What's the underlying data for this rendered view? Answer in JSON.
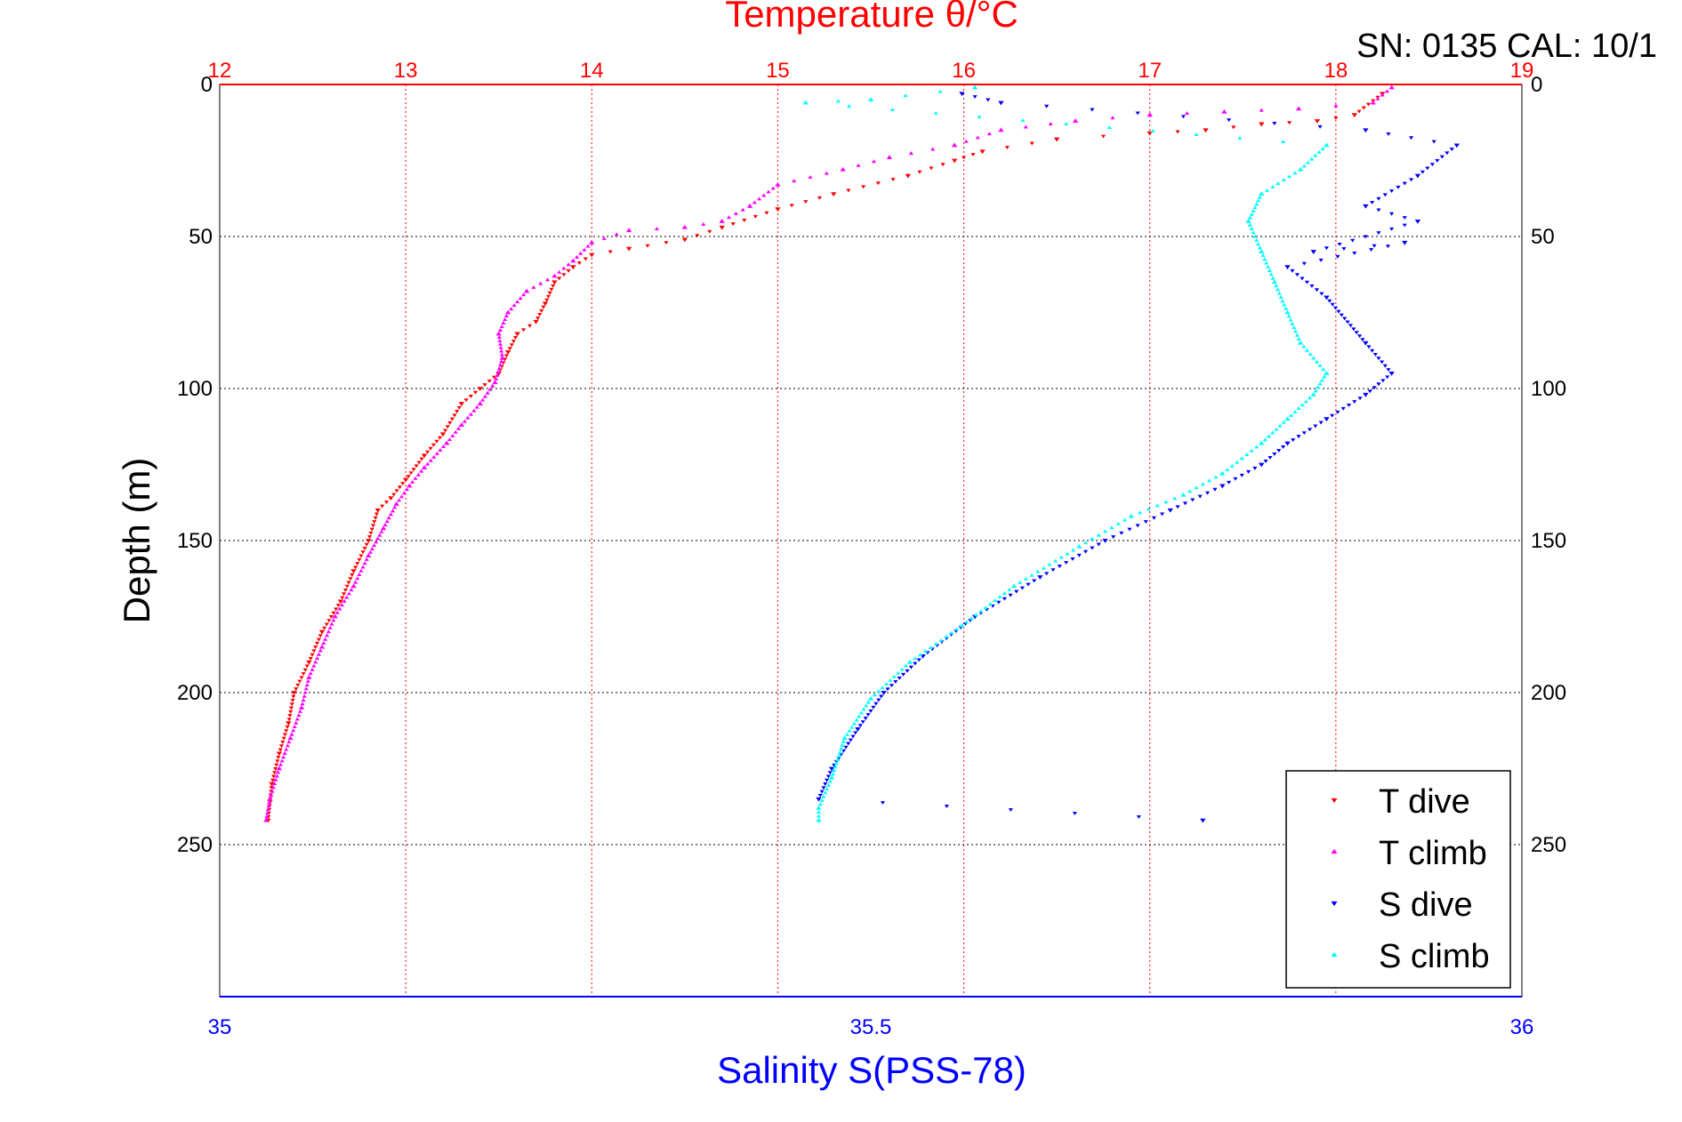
{
  "header": {
    "serial_text": "SN: 0135  CAL: 10/1"
  },
  "chart_data": {
    "type": "scatter",
    "title": "Temperature θ/°C",
    "xlabel": "Salinity S(PSS-78)",
    "ylabel": "Depth (m)",
    "top_axis": {
      "label": "Temperature θ/°C",
      "range": [
        12,
        19
      ],
      "ticks": [
        "12",
        "13",
        "14",
        "15",
        "16",
        "17",
        "18",
        "19"
      ],
      "color": "#ff0000"
    },
    "bottom_axis": {
      "label": "Salinity S(PSS-78)",
      "range": [
        35,
        36
      ],
      "ticks": [
        "35",
        "35.5",
        "36"
      ],
      "color": "#0000ff"
    },
    "y_axis": {
      "range": [
        0,
        300
      ],
      "inverted": true,
      "ticks": [
        "0",
        "50",
        "100",
        "150",
        "200",
        "250"
      ]
    },
    "grid": true,
    "legend": {
      "placement": "bottom-right",
      "entries": [
        "T dive",
        "T climb",
        "S dive",
        "S climb"
      ]
    },
    "series": [
      {
        "name": "T dive",
        "axis": "temperature",
        "marker": "triangle-down",
        "color": "#ff0000",
        "points": [
          [
            18.25,
            3
          ],
          [
            18.1,
            10
          ],
          [
            17.9,
            12
          ],
          [
            17.6,
            13
          ],
          [
            17.3,
            15
          ],
          [
            17.0,
            16
          ],
          [
            16.5,
            18
          ],
          [
            16.1,
            22
          ],
          [
            15.95,
            25
          ],
          [
            15.7,
            30
          ],
          [
            15.3,
            36
          ],
          [
            15.0,
            41
          ],
          [
            14.7,
            47
          ],
          [
            14.5,
            51
          ],
          [
            14.2,
            54
          ],
          [
            14.0,
            56
          ],
          [
            13.9,
            60
          ],
          [
            13.8,
            65
          ],
          [
            13.75,
            72
          ],
          [
            13.7,
            78
          ],
          [
            13.6,
            82
          ],
          [
            13.55,
            88
          ],
          [
            13.5,
            95
          ],
          [
            13.4,
            100
          ],
          [
            13.3,
            105
          ],
          [
            13.2,
            115
          ],
          [
            13.1,
            122
          ],
          [
            13.0,
            130
          ],
          [
            12.92,
            136
          ],
          [
            12.85,
            140
          ],
          [
            12.8,
            150
          ],
          [
            12.72,
            160
          ],
          [
            12.65,
            170
          ],
          [
            12.55,
            180
          ],
          [
            12.48,
            190
          ],
          [
            12.4,
            200
          ],
          [
            12.37,
            210
          ],
          [
            12.32,
            220
          ],
          [
            12.28,
            230
          ],
          [
            12.26,
            242
          ]
        ]
      },
      {
        "name": "T climb",
        "axis": "temperature",
        "marker": "triangle-up",
        "color": "#ff00ff",
        "points": [
          [
            18.3,
            1
          ],
          [
            18.2,
            6
          ],
          [
            17.8,
            8
          ],
          [
            17.4,
            9
          ],
          [
            17.0,
            10
          ],
          [
            16.6,
            12
          ],
          [
            16.2,
            15
          ],
          [
            15.95,
            20
          ],
          [
            15.6,
            24
          ],
          [
            15.35,
            28
          ],
          [
            15.0,
            33
          ],
          [
            14.85,
            40
          ],
          [
            14.7,
            45
          ],
          [
            14.5,
            47
          ],
          [
            14.2,
            48
          ],
          [
            14.0,
            52
          ],
          [
            13.9,
            58
          ],
          [
            13.8,
            63
          ],
          [
            13.65,
            68
          ],
          [
            13.55,
            75
          ],
          [
            13.5,
            82
          ],
          [
            13.52,
            90
          ],
          [
            13.48,
            98
          ],
          [
            13.4,
            105
          ],
          [
            13.3,
            112
          ],
          [
            13.22,
            118
          ],
          [
            13.1,
            126
          ],
          [
            13.02,
            132
          ],
          [
            12.95,
            138
          ],
          [
            12.88,
            146
          ],
          [
            12.8,
            155
          ],
          [
            12.72,
            165
          ],
          [
            12.62,
            175
          ],
          [
            12.55,
            185
          ],
          [
            12.48,
            195
          ],
          [
            12.44,
            205
          ],
          [
            12.38,
            215
          ],
          [
            12.32,
            225
          ],
          [
            12.27,
            235
          ],
          [
            12.25,
            242
          ]
        ]
      },
      {
        "name": "S dive",
        "axis": "salinity",
        "marker": "triangle-down",
        "color": "#0000ff",
        "points": [
          [
            35.57,
            3
          ],
          [
            35.6,
            6
          ],
          [
            35.88,
            15
          ],
          [
            35.95,
            20
          ],
          [
            35.92,
            30
          ],
          [
            35.88,
            40
          ],
          [
            35.92,
            45
          ],
          [
            35.84,
            55
          ],
          [
            35.91,
            52
          ],
          [
            35.82,
            60
          ],
          [
            35.85,
            70
          ],
          [
            35.88,
            85
          ],
          [
            35.9,
            95
          ],
          [
            35.88,
            102
          ],
          [
            35.85,
            110
          ],
          [
            35.82,
            118
          ],
          [
            35.8,
            125
          ],
          [
            35.77,
            132
          ],
          [
            35.73,
            140
          ],
          [
            35.68,
            150
          ],
          [
            35.63,
            162
          ],
          [
            35.58,
            175
          ],
          [
            35.54,
            188
          ],
          [
            35.51,
            200
          ],
          [
            35.49,
            212
          ],
          [
            35.47,
            225
          ],
          [
            35.46,
            235
          ],
          [
            35.755,
            242
          ]
        ]
      },
      {
        "name": "S climb",
        "axis": "salinity",
        "marker": "triangle-up",
        "color": "#00ffff",
        "points": [
          [
            35.58,
            1
          ],
          [
            35.5,
            5
          ],
          [
            35.45,
            6
          ],
          [
            35.85,
            20
          ],
          [
            35.83,
            28
          ],
          [
            35.8,
            36
          ],
          [
            35.79,
            45
          ],
          [
            35.8,
            55
          ],
          [
            35.81,
            65
          ],
          [
            35.82,
            75
          ],
          [
            35.83,
            85
          ],
          [
            35.85,
            95
          ],
          [
            35.84,
            102
          ],
          [
            35.82,
            110
          ],
          [
            35.8,
            118
          ],
          [
            35.77,
            128
          ],
          [
            35.74,
            135
          ],
          [
            35.7,
            142
          ],
          [
            35.66,
            152
          ],
          [
            35.61,
            165
          ],
          [
            35.57,
            178
          ],
          [
            35.53,
            190
          ],
          [
            35.5,
            202
          ],
          [
            35.48,
            215
          ],
          [
            35.47,
            228
          ],
          [
            35.46,
            238
          ],
          [
            35.46,
            242
          ]
        ]
      }
    ]
  }
}
